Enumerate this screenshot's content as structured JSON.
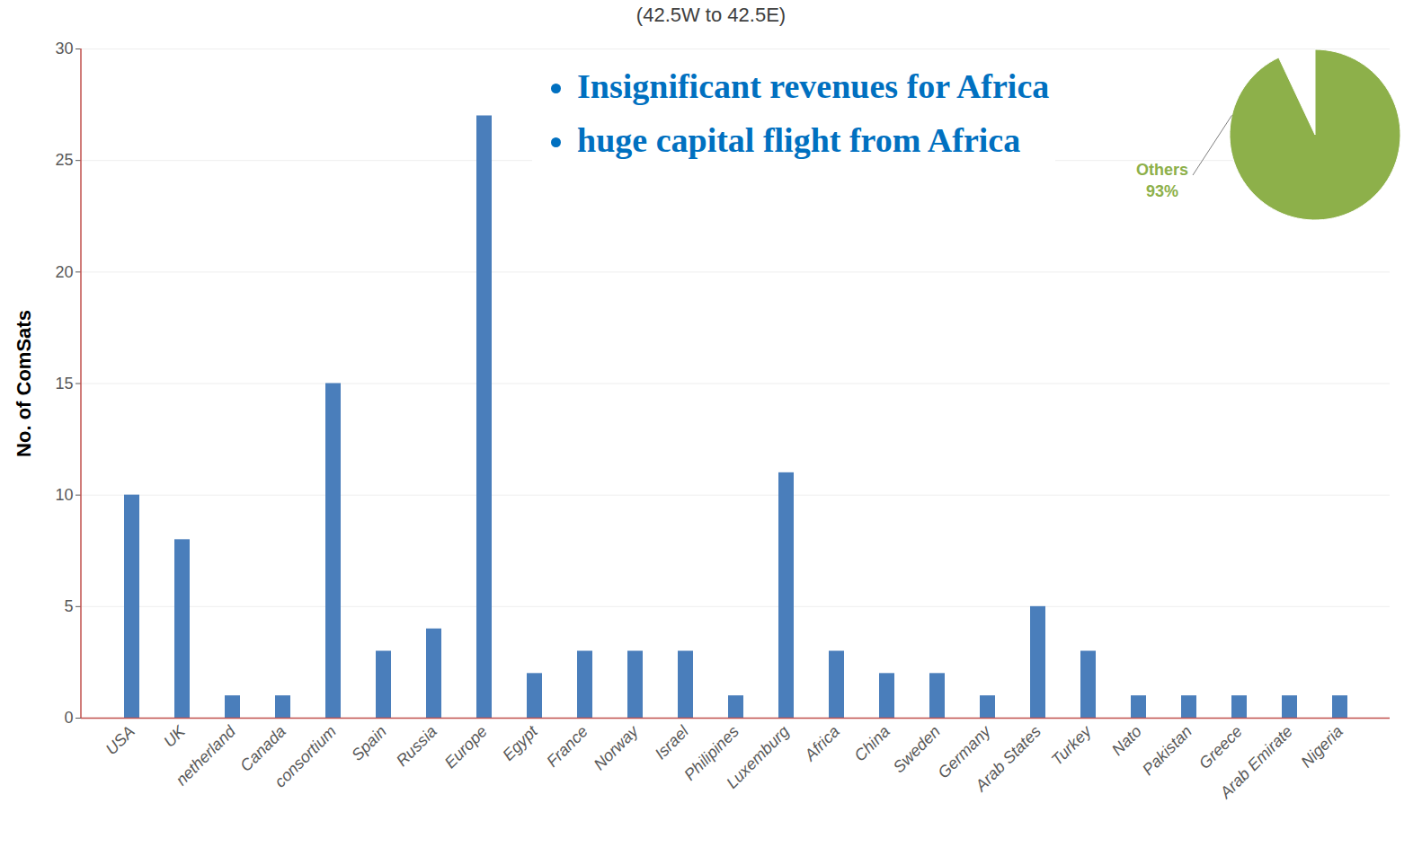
{
  "chart_data": [
    {
      "type": "bar",
      "title": "(42.5W to 42.5E)",
      "y_label": "No. of ComSats",
      "categories": [
        "USA",
        "UK",
        "netherland",
        "Canada",
        "consortium",
        "Spain",
        "Russia",
        "Europe",
        "Egypt",
        "France",
        "Norway",
        "Israel",
        "Philipines",
        "Luxemburg",
        "Africa",
        "China",
        "Sweden",
        "Germany",
        "Arab States",
        "Turkey",
        "Nato",
        "Pakistan",
        "Greece",
        "Arab Emirate",
        "Nigeria"
      ],
      "values": [
        10,
        8,
        1,
        1,
        15,
        3,
        4,
        27,
        2,
        3,
        3,
        3,
        1,
        11,
        3,
        2,
        2,
        1,
        5,
        3,
        1,
        1,
        1,
        1,
        1
      ],
      "color": "#4a7ebb",
      "ylim": [
        0,
        30
      ],
      "yticks": [
        0,
        5,
        10,
        15,
        20,
        25,
        30
      ],
      "grid": true,
      "annotations": [
        "Insignificant revenues for Africa",
        "huge capital flight from Africa"
      ]
    },
    {
      "type": "pie",
      "categories": [
        "Others"
      ],
      "values": [
        93
      ],
      "value_labels": [
        "93%"
      ],
      "color": "#8db04a"
    }
  ]
}
